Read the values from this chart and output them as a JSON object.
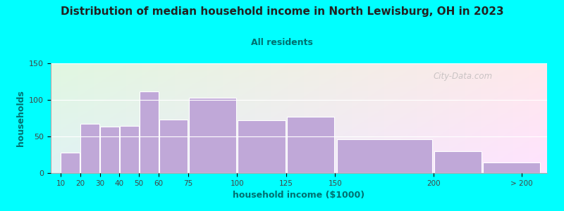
{
  "title": "Distribution of median household income in North Lewisburg, OH in 2023",
  "subtitle": "All residents",
  "xlabel": "household income ($1000)",
  "ylabel": "households",
  "background_color": "#00ffff",
  "bar_color": "#c0a8d8",
  "title_color": "#222222",
  "subtitle_color": "#007070",
  "axis_label_color": "#007070",
  "tick_label_color": "#444444",
  "watermark": "City-Data.com",
  "x_left": [
    10,
    20,
    30,
    40,
    50,
    60,
    75,
    100,
    125,
    150,
    200,
    225
  ],
  "x_right": [
    20,
    30,
    40,
    50,
    60,
    75,
    100,
    125,
    150,
    200,
    225,
    255
  ],
  "values": [
    28,
    67,
    63,
    64,
    112,
    73,
    103,
    72,
    77,
    46,
    30,
    14
  ],
  "tick_positions": [
    10,
    20,
    30,
    40,
    50,
    60,
    75,
    100,
    125,
    150,
    200,
    245
  ],
  "tick_labels": [
    "10",
    "20",
    "30",
    "40",
    "50",
    "60",
    "75",
    "100",
    "125",
    "150",
    "200",
    "> 200"
  ],
  "xlim": [
    5,
    258
  ],
  "ylim": [
    0,
    150
  ],
  "yticks": [
    0,
    50,
    100,
    150
  ]
}
